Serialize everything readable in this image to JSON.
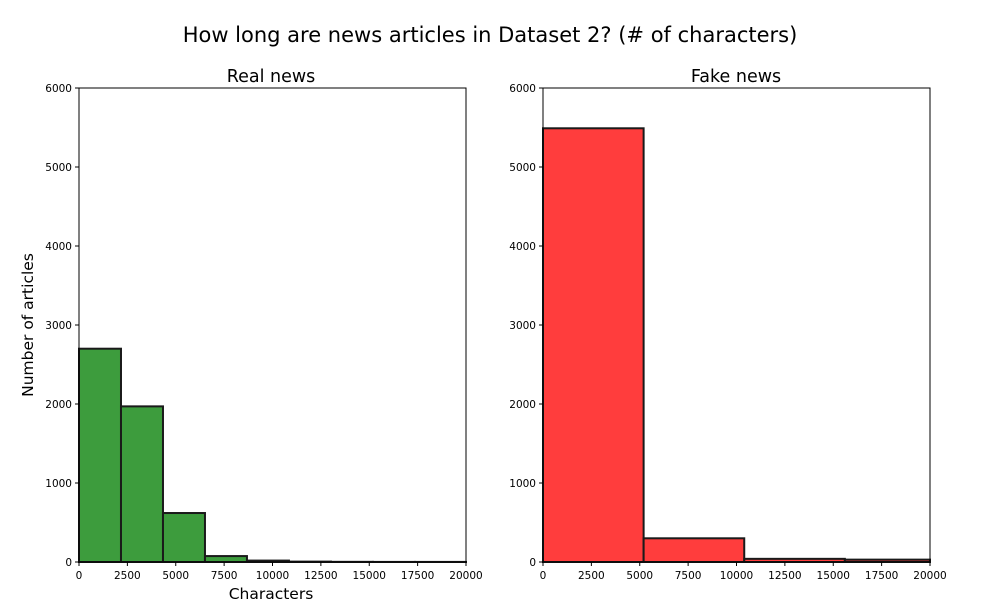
{
  "chart_data": {
    "title": "How long are news articles in Dataset 2? (# of characters)",
    "panels": [
      {
        "type": "bar",
        "subtitle": "Real news",
        "color": "#3d9c3d",
        "edge_color": "#1a1a1a",
        "xlabel": "Characters",
        "ylabel": "Number of articles",
        "xlim": [
          0,
          20000
        ],
        "ylim": [
          0,
          6000
        ],
        "xticks": [
          "0",
          "2500",
          "5000",
          "7500",
          "10000",
          "12500",
          "15000",
          "17500",
          "20000"
        ],
        "yticks": [
          "0",
          "1000",
          "2000",
          "3000",
          "4000",
          "5000",
          "6000"
        ],
        "bins": [
          {
            "x0": 0,
            "x1": 2170,
            "value": 2700
          },
          {
            "x0": 2170,
            "x1": 4340,
            "value": 1970
          },
          {
            "x0": 4340,
            "x1": 6510,
            "value": 620
          },
          {
            "x0": 6510,
            "x1": 8680,
            "value": 75
          },
          {
            "x0": 8680,
            "x1": 10850,
            "value": 18
          },
          {
            "x0": 10850,
            "x1": 13020,
            "value": 5
          },
          {
            "x0": 13020,
            "x1": 15190,
            "value": 2
          },
          {
            "x0": 15190,
            "x1": 17360,
            "value": 1
          },
          {
            "x0": 17360,
            "x1": 20000,
            "value": 1
          }
        ]
      },
      {
        "type": "bar",
        "subtitle": "Fake news",
        "color": "#ff3d3d",
        "edge_color": "#1a1a1a",
        "xlabel": "",
        "ylabel": "",
        "xlim": [
          0,
          20000
        ],
        "ylim": [
          0,
          6000
        ],
        "xticks": [
          "0",
          "2500",
          "5000",
          "7500",
          "10000",
          "12500",
          "15000",
          "17500",
          "20000"
        ],
        "yticks": [
          "0",
          "1000",
          "2000",
          "3000",
          "4000",
          "5000",
          "6000"
        ],
        "bins": [
          {
            "x0": 0,
            "x1": 5200,
            "value": 5490
          },
          {
            "x0": 5200,
            "x1": 10400,
            "value": 300
          },
          {
            "x0": 10400,
            "x1": 15600,
            "value": 40
          },
          {
            "x0": 15600,
            "x1": 20000,
            "value": 30
          }
        ]
      }
    ]
  }
}
